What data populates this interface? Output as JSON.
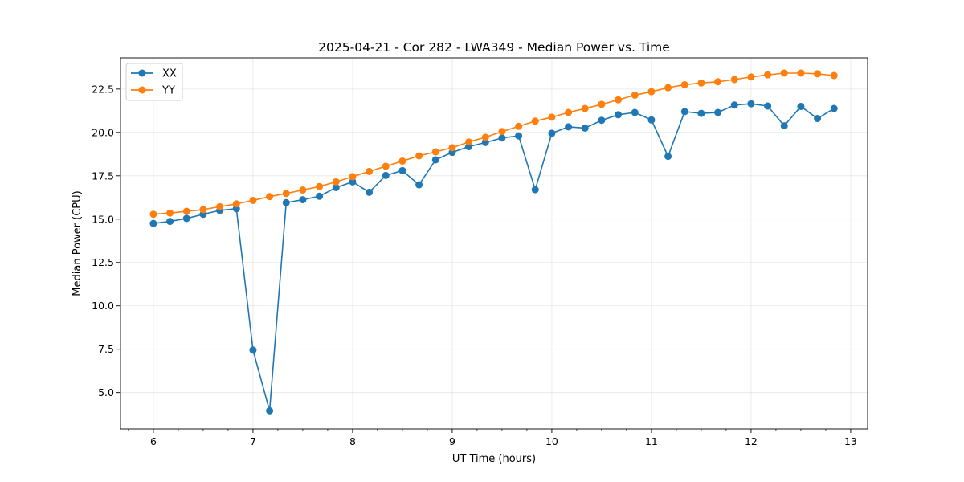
{
  "chart_data": {
    "type": "line",
    "title": "2025-04-21 - Cor 282 - LWA349 - Median Power vs. Time",
    "xlabel": "UT Time (hours)",
    "ylabel": "Median Power (CPU)",
    "xlim": [
      5.67,
      13.17
    ],
    "ylim": [
      2.9,
      24.3
    ],
    "xticks": [
      6,
      7,
      8,
      9,
      10,
      11,
      12,
      13
    ],
    "xtick_labels": [
      "6",
      "7",
      "8",
      "9",
      "10",
      "11",
      "12",
      "13"
    ],
    "yticks": [
      5.0,
      7.5,
      10.0,
      12.5,
      15.0,
      17.5,
      20.0,
      22.5
    ],
    "ytick_labels": [
      "5.0",
      "7.5",
      "10.0",
      "12.5",
      "15.0",
      "17.5",
      "20.0",
      "22.5"
    ],
    "grid": true,
    "legend_position": "top-left",
    "x": [
      6.0,
      6.1667,
      6.3333,
      6.5,
      6.6667,
      6.8333,
      7.0,
      7.1667,
      7.3333,
      7.5,
      7.6667,
      7.8333,
      8.0,
      8.1667,
      8.3333,
      8.5,
      8.6667,
      8.8333,
      9.0,
      9.1667,
      9.3333,
      9.5,
      9.6667,
      9.8333,
      10.0,
      10.1667,
      10.3333,
      10.5,
      10.6667,
      10.8333,
      11.0,
      11.1667,
      11.3333,
      11.5,
      11.6667,
      11.8333,
      12.0,
      12.1667,
      12.3333,
      12.5,
      12.6667,
      12.8333
    ],
    "series": [
      {
        "name": "XX",
        "color": "#1f77b4",
        "values": [
          14.75,
          14.87,
          15.04,
          15.28,
          15.5,
          15.6,
          7.45,
          3.95,
          15.95,
          16.12,
          16.32,
          16.82,
          17.15,
          16.55,
          17.52,
          17.8,
          16.98,
          18.42,
          18.85,
          19.18,
          19.42,
          19.68,
          19.8,
          16.7,
          19.95,
          20.32,
          20.25,
          20.7,
          21.02,
          21.15,
          20.72,
          18.62,
          21.2,
          21.1,
          21.15,
          21.58,
          21.65,
          21.52,
          20.38,
          21.5,
          20.8,
          21.38
        ]
      },
      {
        "name": "YY",
        "color": "#ff7f0e",
        "values": [
          15.28,
          15.35,
          15.45,
          15.55,
          15.72,
          15.88,
          16.08,
          16.3,
          16.48,
          16.68,
          16.88,
          17.15,
          17.45,
          17.75,
          18.05,
          18.35,
          18.65,
          18.88,
          19.12,
          19.45,
          19.72,
          20.05,
          20.35,
          20.65,
          20.88,
          21.15,
          21.38,
          21.62,
          21.88,
          22.15,
          22.35,
          22.58,
          22.75,
          22.85,
          22.92,
          23.05,
          23.2,
          23.32,
          23.42,
          23.42,
          23.38,
          23.28
        ]
      }
    ]
  }
}
